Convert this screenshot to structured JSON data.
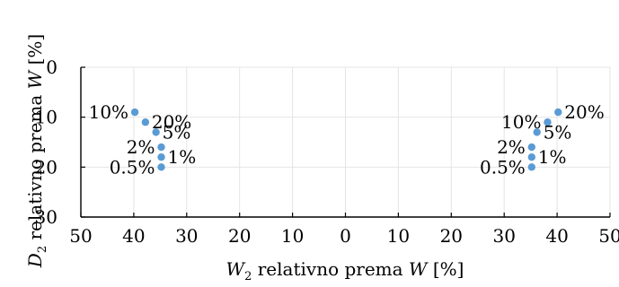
{
  "chart_data": {
    "type": "scatter",
    "color": "#5b9bd5",
    "xlabel": {
      "var": "W",
      "sub": "2",
      "mid": " relativno prema ",
      "ref": "W",
      "unit": " [%]"
    },
    "ylabel": {
      "var": "D",
      "sub": "2",
      "mid": " relativno prema ",
      "ref": "W",
      "unit": " [%]"
    },
    "xlim": [
      -50,
      50
    ],
    "ylim": [
      30,
      0
    ],
    "x_ticks": [
      {
        "value": -50,
        "label": "50"
      },
      {
        "value": -40,
        "label": "40"
      },
      {
        "value": -30,
        "label": "30"
      },
      {
        "value": -20,
        "label": "20"
      },
      {
        "value": -10,
        "label": "10"
      },
      {
        "value": 0,
        "label": "0"
      },
      {
        "value": 10,
        "label": "10"
      },
      {
        "value": 20,
        "label": "20"
      },
      {
        "value": 30,
        "label": "30"
      },
      {
        "value": 40,
        "label": "40"
      },
      {
        "value": 50,
        "label": "50"
      }
    ],
    "y_ticks": [
      {
        "value": 0,
        "label": "0"
      },
      {
        "value": 10,
        "label": "10"
      },
      {
        "value": 20,
        "label": "20"
      },
      {
        "value": 30,
        "label": "30"
      }
    ],
    "grid": true,
    "points": [
      {
        "x": -39.8,
        "y": 9.0,
        "label": "10%",
        "side": "left"
      },
      {
        "x": -37.8,
        "y": 11.0,
        "label": "20%",
        "side": "right"
      },
      {
        "x": -35.8,
        "y": 13.0,
        "label": "5%",
        "side": "right"
      },
      {
        "x": -34.8,
        "y": 16.0,
        "label": "2%",
        "side": "left"
      },
      {
        "x": -34.8,
        "y": 18.0,
        "label": "1%",
        "side": "right"
      },
      {
        "x": -34.8,
        "y": 20.0,
        "label": "0.5%",
        "side": "left"
      },
      {
        "x": 40.2,
        "y": 9.0,
        "label": "20%",
        "side": "right"
      },
      {
        "x": 38.2,
        "y": 11.0,
        "label": "10%",
        "side": "left"
      },
      {
        "x": 36.2,
        "y": 13.0,
        "label": "5%",
        "side": "right"
      },
      {
        "x": 35.2,
        "y": 16.0,
        "label": "2%",
        "side": "left"
      },
      {
        "x": 35.2,
        "y": 18.0,
        "label": "1%",
        "side": "right"
      },
      {
        "x": 35.2,
        "y": 20.0,
        "label": "0.5%",
        "side": "left"
      }
    ]
  }
}
